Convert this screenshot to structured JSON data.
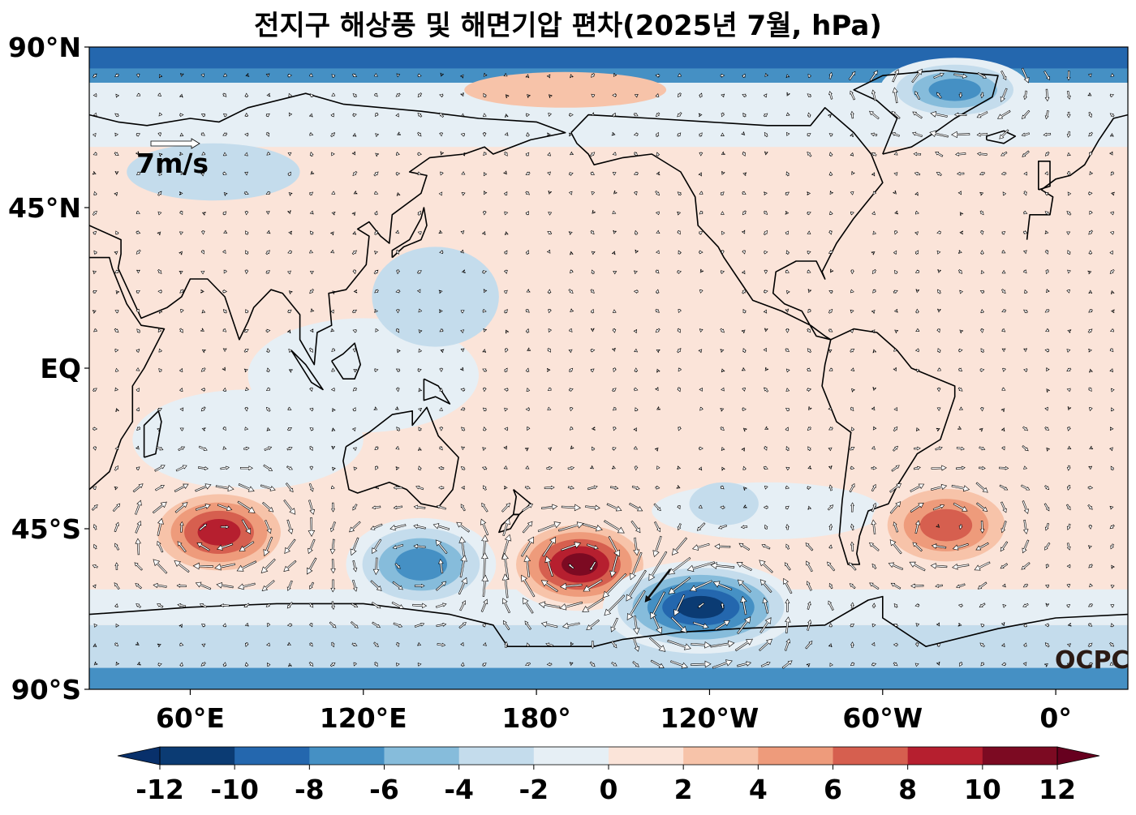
{
  "title": "전지구 해상풍 및 해면기압 편차(2025년 7월, hPa)",
  "map": {
    "lat_ticks": [
      "90°N",
      "45°N",
      "EQ",
      "45°S",
      "90°S"
    ],
    "lon_ticks": [
      "60°E",
      "120°E",
      "180°",
      "120°W",
      "60°W",
      "0°"
    ],
    "central_longitude": 180,
    "lon_range": [
      25,
      385
    ],
    "lat_range": [
      -90,
      90
    ]
  },
  "reference_vector": {
    "label": "7m/s",
    "speed": 7
  },
  "watermark": "OCPC",
  "colorbar": {
    "ticks": [
      "-12",
      "-10",
      "-8",
      "-6",
      "-4",
      "-2",
      "0",
      "2",
      "4",
      "6",
      "8",
      "10",
      "12"
    ],
    "levels": [
      -12,
      -10,
      -8,
      -6,
      -4,
      -2,
      0,
      2,
      4,
      6,
      8,
      10,
      12
    ],
    "colors": [
      "#0b3b73",
      "#2467ae",
      "#4590c4",
      "#86bcdb",
      "#c4dcec",
      "#e6eff5",
      "#fbe4d9",
      "#f7c3a9",
      "#ee9b7b",
      "#d65f4f",
      "#b61f2f",
      "#7c0a22"
    ],
    "extend": "both",
    "under_color": "#08306b",
    "over_color": "#67001f"
  },
  "anomaly_centers": [
    {
      "name": "south-indian-high",
      "lon": 70,
      "lat": -46,
      "value": 10
    },
    {
      "name": "tasman-sea-high",
      "lon": 195,
      "lat": -55,
      "value": 12
    },
    {
      "name": "amundsen-low",
      "lon": 237,
      "lat": -67,
      "value": -12
    },
    {
      "name": "south-atlantic-high",
      "lon": 322,
      "lat": -44,
      "value": 8
    },
    {
      "name": "greenland-low",
      "lon": 325,
      "lat": 78,
      "value": -8
    },
    {
      "name": "australia-low",
      "lon": 140,
      "lat": -55,
      "value": -8
    }
  ]
}
